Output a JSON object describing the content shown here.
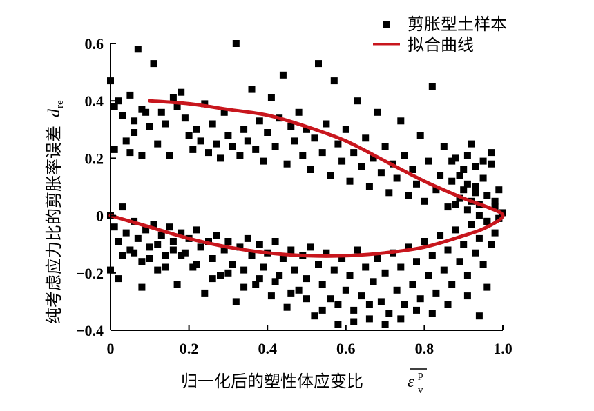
{
  "chart_data": {
    "type": "scatter",
    "xlabel": "归一化后的塑性体应变比",
    "xlabel_symbol": "ε",
    "xlabel_symbol_sup": "p",
    "xlabel_symbol_sub": "v",
    "ylabel": "纯考虑应力比的剪胀率误差",
    "ylabel_symbol": "d",
    "ylabel_symbol_sub": "re",
    "xlim": [
      0,
      1.0
    ],
    "ylim": [
      -0.4,
      0.6
    ],
    "xticks": [
      0,
      0.2,
      0.4,
      0.6,
      0.8,
      1.0
    ],
    "xtick_labels": [
      "0",
      "0.2",
      "0.4",
      "0.6",
      "0.8",
      "1.0"
    ],
    "yticks": [
      -0.4,
      -0.2,
      0,
      0.2,
      0.4,
      0.6
    ],
    "ytick_labels": [
      "−0.4",
      "−0.2",
      "0",
      "0.2",
      "0.4",
      "0.6"
    ],
    "grid": false,
    "legend_position": "top-right",
    "series": [
      {
        "name": "剪胀型土样本",
        "kind": "scatter",
        "color": "#000000",
        "marker": "square",
        "points": [
          [
            0.0,
            0.47
          ],
          [
            0.01,
            0.38
          ],
          [
            0.01,
            0.23
          ],
          [
            0.02,
            0.4
          ],
          [
            0.03,
            0.35
          ],
          [
            0.05,
            0.42
          ],
          [
            0.06,
            0.33
          ],
          [
            0.07,
            0.58
          ],
          [
            0.04,
            0.26
          ],
          [
            0.05,
            0.22
          ],
          [
            0.08,
            0.37
          ],
          [
            0.09,
            0.36
          ],
          [
            0.1,
            0.31
          ],
          [
            0.08,
            0.21
          ],
          [
            0.06,
            0.29
          ],
          [
            0.11,
            0.53
          ],
          [
            0.12,
            0.25
          ],
          [
            0.13,
            0.36
          ],
          [
            0.14,
            0.32
          ],
          [
            0.15,
            0.21
          ],
          [
            0.16,
            0.41
          ],
          [
            0.17,
            0.38
          ],
          [
            0.18,
            0.43
          ],
          [
            0.19,
            0.34
          ],
          [
            0.2,
            0.28
          ],
          [
            0.21,
            0.23
          ],
          [
            0.22,
            0.3
          ],
          [
            0.23,
            0.26
          ],
          [
            0.24,
            0.39
          ],
          [
            0.25,
            0.22
          ],
          [
            0.26,
            0.32
          ],
          [
            0.27,
            0.25
          ],
          [
            0.28,
            0.2
          ],
          [
            0.29,
            0.36
          ],
          [
            0.3,
            0.28
          ],
          [
            0.31,
            0.24
          ],
          [
            0.32,
            0.6
          ],
          [
            0.33,
            0.21
          ],
          [
            0.34,
            0.3
          ],
          [
            0.35,
            0.26
          ],
          [
            0.36,
            0.44
          ],
          [
            0.37,
            0.23
          ],
          [
            0.38,
            0.33
          ],
          [
            0.39,
            0.19
          ],
          [
            0.4,
            0.29
          ],
          [
            0.41,
            0.41
          ],
          [
            0.42,
            0.24
          ],
          [
            0.43,
            0.34
          ],
          [
            0.44,
            0.49
          ],
          [
            0.45,
            0.18
          ],
          [
            0.46,
            0.31
          ],
          [
            0.47,
            0.26
          ],
          [
            0.48,
            0.36
          ],
          [
            0.49,
            0.21
          ],
          [
            0.5,
            0.3
          ],
          [
            0.51,
            0.16
          ],
          [
            0.52,
            0.27
          ],
          [
            0.53,
            0.53
          ],
          [
            0.54,
            0.22
          ],
          [
            0.55,
            0.32
          ],
          [
            0.56,
            0.14
          ],
          [
            0.57,
            0.47
          ],
          [
            0.58,
            0.25
          ],
          [
            0.59,
            0.19
          ],
          [
            0.6,
            0.3
          ],
          [
            0.61,
            0.12
          ],
          [
            0.62,
            0.22
          ],
          [
            0.63,
            0.4
          ],
          [
            0.64,
            0.17
          ],
          [
            0.65,
            0.27
          ],
          [
            0.66,
            0.1
          ],
          [
            0.67,
            0.2
          ],
          [
            0.68,
            0.36
          ],
          [
            0.69,
            0.15
          ],
          [
            0.7,
            0.24
          ],
          [
            0.71,
            0.08
          ],
          [
            0.72,
            0.18
          ],
          [
            0.73,
            0.13
          ],
          [
            0.74,
            0.33
          ],
          [
            0.75,
            0.21
          ],
          [
            0.76,
            0.07
          ],
          [
            0.77,
            0.16
          ],
          [
            0.78,
            0.11
          ],
          [
            0.79,
            0.28
          ],
          [
            0.8,
            0.05
          ],
          [
            0.81,
            0.19
          ],
          [
            0.82,
            0.45
          ],
          [
            0.83,
            0.09
          ],
          [
            0.84,
            0.14
          ],
          [
            0.85,
            0.24
          ],
          [
            0.86,
            0.03
          ],
          [
            0.87,
            0.12
          ],
          [
            0.88,
            0.2
          ],
          [
            0.89,
            0.06
          ],
          [
            0.9,
            0.16
          ],
          [
            0.91,
            0.02
          ],
          [
            0.92,
            0.25
          ],
          [
            0.93,
            0.1
          ],
          [
            0.94,
            0.04
          ],
          [
            0.95,
            0.13
          ],
          [
            0.96,
            0.07
          ],
          [
            0.97,
            0.18
          ],
          [
            0.98,
            0.03
          ],
          [
            0.99,
            0.09
          ],
          [
            1.0,
            0.01
          ],
          [
            0.97,
            0.22
          ],
          [
            0.95,
            0.19
          ],
          [
            0.93,
            0.17
          ],
          [
            0.91,
            0.21
          ],
          [
            0.89,
            0.14
          ],
          [
            0.9,
            0.09
          ],
          [
            0.92,
            0.05
          ],
          [
            0.94,
            0.0
          ],
          [
            0.96,
            -0.02
          ],
          [
            0.98,
            0.05
          ],
          [
            0.99,
            -0.01
          ],
          [
            0.93,
            0.08
          ],
          [
            0.91,
            0.11
          ],
          [
            0.88,
            0.04
          ],
          [
            0.87,
            0.19
          ],
          [
            0.0,
            0.0
          ],
          [
            0.01,
            -0.04
          ],
          [
            0.02,
            -0.09
          ],
          [
            0.03,
            0.03
          ],
          [
            0.04,
            -0.06
          ],
          [
            0.05,
            -0.12
          ],
          [
            0.06,
            -0.02
          ],
          [
            0.07,
            -0.08
          ],
          [
            0.08,
            -0.16
          ],
          [
            0.09,
            -0.05
          ],
          [
            0.1,
            -0.11
          ],
          [
            0.11,
            -0.03
          ],
          [
            0.12,
            -0.19
          ],
          [
            0.13,
            -0.07
          ],
          [
            0.14,
            -0.14
          ],
          [
            0.15,
            -0.04
          ],
          [
            0.16,
            -0.09
          ],
          [
            0.17,
            -0.24
          ],
          [
            0.18,
            -0.06
          ],
          [
            0.19,
            -0.13
          ],
          [
            0.2,
            -0.08
          ],
          [
            0.21,
            -0.18
          ],
          [
            0.22,
            -0.05
          ],
          [
            0.23,
            -0.11
          ],
          [
            0.24,
            -0.27
          ],
          [
            0.25,
            -0.09
          ],
          [
            0.26,
            -0.15
          ],
          [
            0.27,
            -0.07
          ],
          [
            0.28,
            -0.21
          ],
          [
            0.29,
            -0.12
          ],
          [
            0.3,
            -0.09
          ],
          [
            0.31,
            -0.17
          ],
          [
            0.32,
            -0.3
          ],
          [
            0.33,
            -0.11
          ],
          [
            0.34,
            -0.19
          ],
          [
            0.35,
            -0.08
          ],
          [
            0.36,
            -0.14
          ],
          [
            0.37,
            -0.24
          ],
          [
            0.38,
            -0.1
          ],
          [
            0.39,
            -0.18
          ],
          [
            0.4,
            -0.13
          ],
          [
            0.41,
            -0.28
          ],
          [
            0.42,
            -0.09
          ],
          [
            0.43,
            -0.21
          ],
          [
            0.44,
            -0.15
          ],
          [
            0.45,
            -0.32
          ],
          [
            0.46,
            -0.12
          ],
          [
            0.47,
            -0.19
          ],
          [
            0.48,
            -0.26
          ],
          [
            0.49,
            -0.14
          ],
          [
            0.5,
            -0.22
          ],
          [
            0.51,
            -0.11
          ],
          [
            0.52,
            -0.35
          ],
          [
            0.53,
            -0.17
          ],
          [
            0.54,
            -0.24
          ],
          [
            0.55,
            -0.13
          ],
          [
            0.56,
            -0.29
          ],
          [
            0.57,
            -0.19
          ],
          [
            0.58,
            -0.38
          ],
          [
            0.59,
            -0.15
          ],
          [
            0.6,
            -0.26
          ],
          [
            0.61,
            -0.21
          ],
          [
            0.62,
            -0.33
          ],
          [
            0.63,
            -0.12
          ],
          [
            0.64,
            -0.28
          ],
          [
            0.65,
            -0.18
          ],
          [
            0.66,
            -0.36
          ],
          [
            0.67,
            -0.23
          ],
          [
            0.68,
            -0.15
          ],
          [
            0.69,
            -0.3
          ],
          [
            0.7,
            -0.2
          ],
          [
            0.71,
            -0.34
          ],
          [
            0.72,
            -0.13
          ],
          [
            0.73,
            -0.26
          ],
          [
            0.74,
            -0.18
          ],
          [
            0.75,
            -0.31
          ],
          [
            0.76,
            -0.11
          ],
          [
            0.77,
            -0.24
          ],
          [
            0.78,
            -0.16
          ],
          [
            0.79,
            -0.29
          ],
          [
            0.8,
            -0.09
          ],
          [
            0.81,
            -0.21
          ],
          [
            0.82,
            -0.14
          ],
          [
            0.83,
            -0.27
          ],
          [
            0.84,
            -0.07
          ],
          [
            0.85,
            -0.19
          ],
          [
            0.86,
            -0.12
          ],
          [
            0.87,
            -0.24
          ],
          [
            0.88,
            -0.05
          ],
          [
            0.89,
            -0.16
          ],
          [
            0.9,
            -0.1
          ],
          [
            0.91,
            -0.21
          ],
          [
            0.92,
            -0.03
          ],
          [
            0.93,
            -0.13
          ],
          [
            0.94,
            -0.08
          ],
          [
            0.95,
            -0.17
          ],
          [
            0.96,
            -0.02
          ],
          [
            0.97,
            -0.1
          ],
          [
            0.98,
            -0.06
          ],
          [
            0.99,
            -0.01
          ],
          [
            0.94,
            -0.35
          ],
          [
            0.96,
            -0.25
          ],
          [
            0.91,
            -0.28
          ],
          [
            0.86,
            -0.31
          ],
          [
            0.82,
            -0.34
          ],
          [
            0.78,
            -0.33
          ],
          [
            0.74,
            -0.36
          ],
          [
            0.7,
            -0.38
          ],
          [
            0.66,
            -0.31
          ],
          [
            0.62,
            -0.37
          ],
          [
            0.58,
            -0.31
          ],
          [
            0.54,
            -0.33
          ],
          [
            0.5,
            -0.29
          ],
          [
            0.46,
            -0.27
          ],
          [
            0.42,
            -0.23
          ],
          [
            0.38,
            -0.22
          ],
          [
            0.34,
            -0.25
          ],
          [
            0.3,
            -0.2
          ],
          [
            0.26,
            -0.22
          ],
          [
            0.22,
            -0.17
          ],
          [
            0.18,
            -0.14
          ],
          [
            0.14,
            -0.18
          ],
          [
            0.1,
            -0.15
          ],
          [
            0.06,
            -0.13
          ],
          [
            0.03,
            -0.14
          ],
          [
            0.0,
            -0.19
          ],
          [
            0.02,
            -0.22
          ],
          [
            0.08,
            -0.25
          ],
          [
            0.12,
            -0.1
          ],
          [
            0.16,
            -0.12
          ]
        ]
      },
      {
        "name": "拟合曲线",
        "kind": "line",
        "color": "#c8161d",
        "upper_branch": [
          [
            0.1,
            0.4
          ],
          [
            0.2,
            0.39
          ],
          [
            0.3,
            0.37
          ],
          [
            0.4,
            0.35
          ],
          [
            0.5,
            0.31
          ],
          [
            0.6,
            0.26
          ],
          [
            0.7,
            0.19
          ],
          [
            0.8,
            0.12
          ],
          [
            0.9,
            0.06
          ],
          [
            0.96,
            0.03
          ],
          [
            1.0,
            0.0
          ]
        ],
        "lower_branch": [
          [
            1.0,
            0.0
          ],
          [
            0.96,
            -0.04
          ],
          [
            0.9,
            -0.07
          ],
          [
            0.8,
            -0.11
          ],
          [
            0.7,
            -0.13
          ],
          [
            0.6,
            -0.14
          ],
          [
            0.5,
            -0.14
          ],
          [
            0.4,
            -0.13
          ],
          [
            0.3,
            -0.11
          ],
          [
            0.2,
            -0.08
          ],
          [
            0.1,
            -0.04
          ],
          [
            0.0,
            0.0
          ]
        ]
      }
    ]
  }
}
